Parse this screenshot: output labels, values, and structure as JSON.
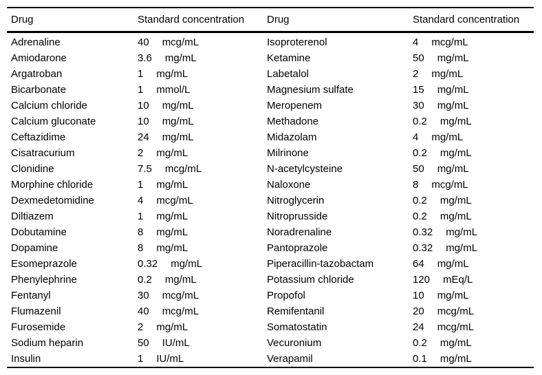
{
  "colors": {
    "background": "#ffffff",
    "text": "#000000",
    "rule": "#000000"
  },
  "table": {
    "columns": [
      "Drug",
      "Standard concentration",
      "Drug",
      "Standard concentration"
    ],
    "left_rows": [
      {
        "drug": "Adrenaline",
        "value": "40",
        "unit": "mcg/mL"
      },
      {
        "drug": "Amiodarone",
        "value": "3.6",
        "unit": "mg/mL"
      },
      {
        "drug": "Argatroban",
        "value": "1",
        "unit": "mg/mL"
      },
      {
        "drug": "Bicarbonate",
        "value": "1",
        "unit": "mmol/L"
      },
      {
        "drug": "Calcium chloride",
        "value": "10",
        "unit": "mg/mL"
      },
      {
        "drug": "Calcium gluconate",
        "value": "10",
        "unit": "mg/mL"
      },
      {
        "drug": "Ceftazidime",
        "value": "24",
        "unit": "mg/mL"
      },
      {
        "drug": "Cisatracurium",
        "value": "2",
        "unit": "mg/mL"
      },
      {
        "drug": "Clonidine",
        "value": "7.5",
        "unit": "mcg/mL"
      },
      {
        "drug": "Morphine chloride",
        "value": "1",
        "unit": "mg/mL"
      },
      {
        "drug": "Dexmedetomidine",
        "value": "4",
        "unit": "mcg/mL"
      },
      {
        "drug": "Diltiazem",
        "value": "1",
        "unit": "mg/mL"
      },
      {
        "drug": "Dobutamine",
        "value": "8",
        "unit": "mg/mL"
      },
      {
        "drug": "Dopamine",
        "value": "8",
        "unit": "mg/mL"
      },
      {
        "drug": "Esomeprazole",
        "value": "0.32",
        "unit": "mg/mL"
      },
      {
        "drug": "Phenylephrine",
        "value": "0.2",
        "unit": "mg/mL"
      },
      {
        "drug": "Fentanyl",
        "value": "30",
        "unit": "mcg/mL"
      },
      {
        "drug": "Flumazenil",
        "value": "40",
        "unit": "mcg/mL"
      },
      {
        "drug": "Furosemide",
        "value": "2",
        "unit": "mg/mL"
      },
      {
        "drug": "Sodium heparin",
        "value": "50",
        "unit": "IU/mL"
      },
      {
        "drug": "Insulin",
        "value": "1",
        "unit": "IU/mL"
      }
    ],
    "right_rows": [
      {
        "drug": "Isoproterenol",
        "value": "4",
        "unit": "mcg/mL"
      },
      {
        "drug": "Ketamine",
        "value": "50",
        "unit": "mg/mL"
      },
      {
        "drug": "Labetalol",
        "value": "2",
        "unit": "mg/mL"
      },
      {
        "drug": "Magnesium sulfate",
        "value": "15",
        "unit": "mg/mL"
      },
      {
        "drug": "Meropenem",
        "value": "30",
        "unit": "mg/mL"
      },
      {
        "drug": "Methadone",
        "value": "0.2",
        "unit": "mg/mL"
      },
      {
        "drug": "Midazolam",
        "value": "4",
        "unit": "mg/mL"
      },
      {
        "drug": "Milrinone",
        "value": "0.2",
        "unit": "mg/mL"
      },
      {
        "drug": "N-acetylcysteine",
        "value": "50",
        "unit": "mg/mL"
      },
      {
        "drug": "Naloxone",
        "value": "8",
        "unit": "mcg/mL"
      },
      {
        "drug": "Nitroglycerin",
        "value": "0.2",
        "unit": "mg/mL"
      },
      {
        "drug": "Nitroprusside",
        "value": "0.2",
        "unit": "mg/mL"
      },
      {
        "drug": "Noradrenaline",
        "value": "0.32",
        "unit": "mg/mL"
      },
      {
        "drug": "Pantoprazole",
        "value": "0.32",
        "unit": "mg/mL"
      },
      {
        "drug": "Piperacillin-tazobactam",
        "value": "64",
        "unit": "mg/mL"
      },
      {
        "drug": "Potassium chloride",
        "value": "120",
        "unit": "mEq/L"
      },
      {
        "drug": "Propofol",
        "value": "10",
        "unit": "mg/mL"
      },
      {
        "drug": "Remifentanil",
        "value": "20",
        "unit": "mcg/mL"
      },
      {
        "drug": "Somatostatin",
        "value": "24",
        "unit": "mcg/mL"
      },
      {
        "drug": "Vecuronium",
        "value": "0.2",
        "unit": "mg/mL"
      },
      {
        "drug": "Verapamil",
        "value": "0.1",
        "unit": "mg/mL"
      }
    ]
  }
}
